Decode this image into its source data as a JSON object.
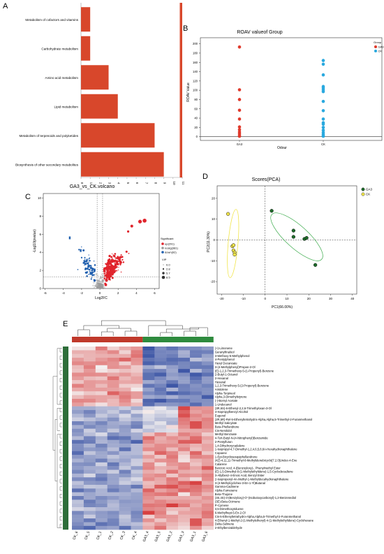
{
  "panel_letters": {
    "a": "A",
    "b": "B",
    "c": "C",
    "d": "D",
    "e": "E"
  },
  "colors": {
    "bar": "#d8472b",
    "ga": "#e03a2c",
    "ck": "#2aa9df",
    "up": "#e0242c",
    "nosig": "#9a9a9a",
    "down": "#1f5fae",
    "pca_ga": "#1e6b2a",
    "pca_ga_ellipse": "#3aaa4a",
    "pca_ck": "#f1e54a",
    "heat_low": "#3d56a6",
    "heat_mid": "#f4f0f0",
    "heat_high": "#d42a2a",
    "group_ck": "#c0392b",
    "group_ga": "#2e8b3e",
    "row_bar": "#2e6e3a"
  },
  "chart_data": [
    {
      "panel": "A",
      "type": "bar",
      "orientation": "horizontal",
      "categories": [
        "Metabolism of cofactors and vitamins",
        "Carbohydrate metabolism",
        "Amino acid metabolism",
        "Lipid metabolism",
        "Metabolism of terpenoids and polyketides",
        "Biosynthesis of other secondary metabolites"
      ],
      "values": [
        1,
        1,
        3,
        4,
        8,
        9
      ],
      "xticks": [
        "0",
        "1",
        "2",
        "3",
        "4",
        "5",
        "6",
        "7",
        "8",
        "9",
        "10",
        "11"
      ],
      "xlim": [
        0,
        11
      ],
      "right_bar_value": 11
    },
    {
      "panel": "B",
      "type": "scatter",
      "title": "ROAV valueof Group",
      "xlabel": "Odour",
      "ylabel": "ROAV Value",
      "categories": [
        "GA3",
        "CK"
      ],
      "yticks": [
        "0",
        "20",
        "40",
        "60",
        "80",
        "100",
        "120",
        "140",
        "160",
        "180",
        "200"
      ],
      "ylim": [
        -5,
        210
      ],
      "legend_title": "Group",
      "legend": [
        "GA3",
        "CK"
      ],
      "series": [
        {
          "name": "GA3",
          "values": [
            193,
            101,
            80,
            57,
            38,
            21,
            15,
            10,
            6,
            2,
            1
          ]
        },
        {
          "name": "CK",
          "values": [
            164,
            156,
            133,
            108,
            105,
            101,
            97,
            76,
            56,
            38,
            30,
            27,
            20,
            14,
            9,
            5,
            2,
            1
          ]
        }
      ]
    },
    {
      "panel": "C",
      "type": "scatter",
      "title": "GA3_vs_CK.volcano",
      "xlabel": "Log2FC",
      "ylabel": "-Log10(pvalue)",
      "xticks": [
        "-6",
        "-4",
        "-2",
        "0",
        "2",
        "4",
        "6"
      ],
      "yticks": [
        "0",
        "2",
        "4",
        "6",
        "8",
        "10"
      ],
      "xlim": [
        -6.2,
        6.5
      ],
      "ylim": [
        0,
        10.5
      ],
      "legend_title": "Significant",
      "legend": [
        "up(291)",
        "nosig(381)",
        "down(92)"
      ],
      "size_legend_title": "VIP",
      "size_legend": [
        "0.0",
        "2.8",
        "5.7",
        "8.5"
      ]
    },
    {
      "panel": "D",
      "type": "scatter",
      "title": "Scores(PCA)",
      "xlabel": "PC1(66.00%)",
      "ylabel": "PC2(11.30%)",
      "xticks": [
        "-20",
        "-10",
        "0",
        "10",
        "20",
        "30",
        "40"
      ],
      "yticks": [
        "-20",
        "-10",
        "0",
        "10",
        "20"
      ],
      "xlim": [
        -22,
        42
      ],
      "ylim": [
        -26,
        26
      ],
      "legend": [
        "GA3",
        "CK"
      ],
      "series": [
        {
          "name": "GA3",
          "x": [
            3,
            13,
            13,
            18,
            19,
            23
          ],
          "y": [
            14,
            4.5,
            1.5,
            0.5,
            1,
            -12
          ]
        },
        {
          "name": "CK",
          "x": [
            -17,
            -15,
            -14.5,
            -14,
            -14,
            -14.5
          ],
          "y": [
            12.5,
            -3,
            -5,
            -6,
            -7,
            -2.5
          ]
        }
      ]
    },
    {
      "panel": "E",
      "type": "heatmap",
      "columns": [
        "CK_6",
        "CK_5",
        "CK_1",
        "CK_2",
        "CK_3",
        "CK_4",
        "GA3_4",
        "GA3_5",
        "GA3_2",
        "GA3_3",
        "GA3_1",
        "GA3_6"
      ],
      "rows": [
        "(+)-Limonene",
        "Geranyllinalool",
        "3-Methoxy-5-Methylphenol",
        "4-Pentylphenol",
        "Hexyl Decanoate",
        "3-(4-Methylphenyl)Propan-2-Ol",
        "(E)-1,2,3-Trimethoxy-5-(1-Propenyl)-Benzene",
        "2-Butyl-1-Octanol",
        "2-Hexanal",
        "Hexanal",
        "1,2,3-Trimethoxy-5-(2-Propenyl)-Benzene",
        "Aristolene",
        "Alpha-Terpineol",
        "Alpha,3-Dimethylstyrene",
        "(-)-Bornyl Acetate",
        "1-Undecanol",
        "(3R,6S)-6-Ethenyl-2,2,6-Trimethyloxan-3-Ol",
        "4-Isopropylbenzyl Alcohol",
        "Eugenol",
        "(2R,5R)-Rel-5-Ethenyltetrahydro-Alpha,Alpha,5-Trimethyl-2-Furanmethanol",
        "Methyl Salicylate",
        "Beta-Phellandrene",
        "Cis-Nerolidol",
        "Methyl Benzoate",
        "4-Tert-Butyl-N-(4-Nitrophenyl)Benzamide",
        "2-Pentylfuran",
        "1,4-Dihydroxycadalene",
        "1-Isopropyl-4,7-Dimethyl-1,2,4,6,5,8,8A-Hexahydronaphthalene",
        "Copaene",
        "1-Epi-Bicyclosesquiphellandrene",
        "(4Z)-4,11,11-Trimethyl-8-Methylidenebicyclo[7.2.0]Undec-4-Ene",
        "Calarene",
        "Benzoic Acid, 4-(Benzoyloxy)-, Phenylmethyl Ester",
        "(E)-1,5-Dimethyl-8-(1-Methylethylidene)-1,5-Cyclodecadiene",
        "3-Allylbenz-4-Enoic Acid, Benzyl Ester",
        "2-Isopropenyl-4A-Methyl-1-Methyldecahydronaphthalene",
        "3-(4-Methylcyclohex-3-En-1-Yl)Butanal",
        "Gamma-Cadinene",
        "Alpha-Farnesene",
        "Beta-Thujone",
        "(3S,4S)-3-(Benzyloxy)-O'-(Isobutoxycarbonyl)-1,2-Benzenediol",
        "(3E)-Beta-Ocimene",
        "P-Cymene",
        "3,5-Dimethoxytoluene",
        "6-Methylhept-5-En-2-Ol",
        "Cis-5-Ethenyltetrahydro-Alpha,Alpha,5-Trimethyl-2-Furanmethanol",
        "4-Ethenyl-1-Methyl-2-(1-Methylethenyl)-4-(1-Methylethylidene)-Cyclohexane",
        "Delta-Selinene",
        "2-Ethylbenzaldehyde"
      ]
    }
  ]
}
